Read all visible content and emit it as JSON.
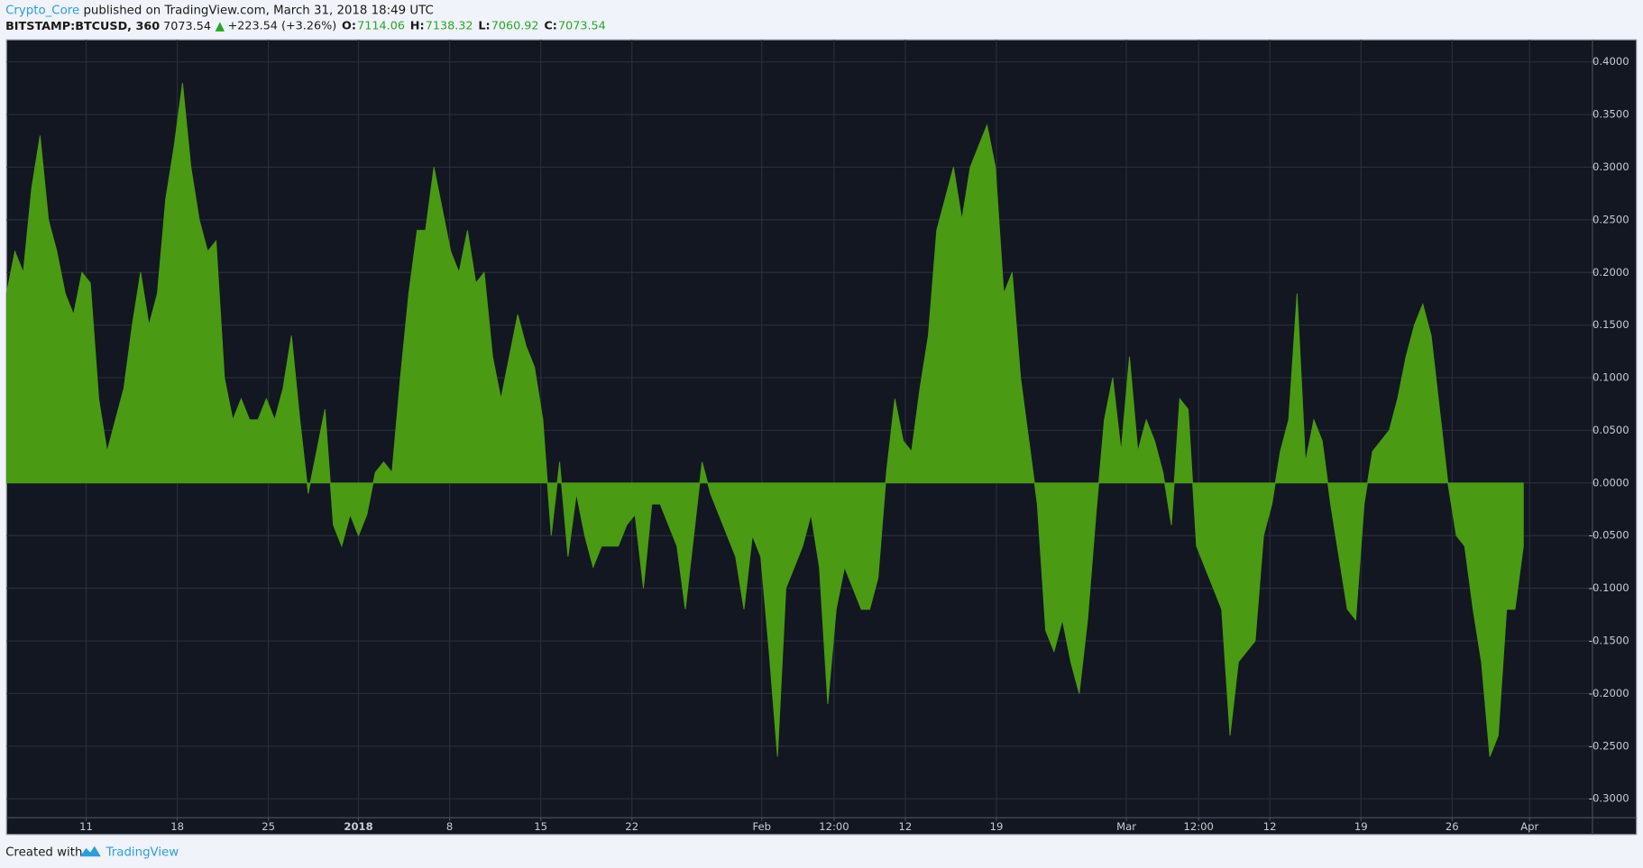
{
  "header": {
    "author": "Crypto_Core",
    "published": "published on TradingView.com, March 31, 2018 18:49 UTC",
    "symbol": "BITSTAMP:BTCUSD, 360",
    "last": "7073.54",
    "change": "+223.54 (+3.26%)",
    "ohlc": [
      {
        "label": "O:",
        "value": "7114.06"
      },
      {
        "label": "H:",
        "value": "7138.32"
      },
      {
        "label": "L:",
        "value": "7060.92"
      },
      {
        "label": "C:",
        "value": "7073.54"
      }
    ]
  },
  "footer": {
    "created": "Created with",
    "brand": "TradingView"
  },
  "chart_data": {
    "type": "area",
    "color": "#4a9a14",
    "grid": true,
    "values": [
      0.18,
      0.22,
      0.2,
      0.28,
      0.33,
      0.25,
      0.22,
      0.18,
      0.16,
      0.2,
      0.19,
      0.08,
      0.03,
      0.06,
      0.09,
      0.15,
      0.2,
      0.15,
      0.18,
      0.27,
      0.32,
      0.38,
      0.3,
      0.25,
      0.22,
      0.23,
      0.1,
      0.06,
      0.08,
      0.06,
      0.06,
      0.08,
      0.06,
      0.09,
      0.14,
      0.06,
      -0.01,
      0.03,
      0.07,
      -0.04,
      -0.06,
      -0.03,
      -0.05,
      -0.03,
      0.01,
      0.02,
      0.01,
      0.1,
      0.18,
      0.24,
      0.24,
      0.3,
      0.26,
      0.22,
      0.2,
      0.24,
      0.19,
      0.2,
      0.12,
      0.08,
      0.12,
      0.16,
      0.13,
      0.11,
      0.06,
      -0.05,
      0.02,
      -0.07,
      -0.01,
      -0.05,
      -0.08,
      -0.06,
      -0.06,
      -0.06,
      -0.04,
      -0.03,
      -0.1,
      -0.02,
      -0.02,
      -0.04,
      -0.06,
      -0.12,
      -0.05,
      0.02,
      -0.01,
      -0.03,
      -0.05,
      -0.07,
      -0.12,
      -0.05,
      -0.07,
      -0.16,
      -0.26,
      -0.1,
      -0.08,
      -0.06,
      -0.03,
      -0.08,
      -0.21,
      -0.12,
      -0.08,
      -0.1,
      -0.12,
      -0.12,
      -0.09,
      0.01,
      0.08,
      0.04,
      0.03,
      0.09,
      0.14,
      0.24,
      0.27,
      0.3,
      0.25,
      0.3,
      0.32,
      0.34,
      0.3,
      0.18,
      0.2,
      0.1,
      0.04,
      -0.02,
      -0.14,
      -0.16,
      -0.13,
      -0.17,
      -0.2,
      -0.13,
      -0.03,
      0.06,
      0.1,
      0.03,
      0.12,
      0.03,
      0.06,
      0.04,
      0.01,
      -0.04,
      0.08,
      0.07,
      -0.06,
      -0.08,
      -0.1,
      -0.12,
      -0.24,
      -0.17,
      -0.16,
      -0.15,
      -0.05,
      -0.02,
      0.03,
      0.06,
      0.18,
      0.02,
      0.06,
      0.04,
      -0.02,
      -0.07,
      -0.12,
      -0.13,
      -0.02,
      0.03,
      0.04,
      0.05,
      0.08,
      0.12,
      0.15,
      0.17,
      0.14,
      0.07,
      0.0,
      -0.05,
      -0.06,
      -0.12,
      -0.17,
      -0.26,
      -0.24,
      -0.12,
      -0.12,
      -0.06
    ],
    "xlim": [
      0,
      189.25
    ],
    "xticks": [
      {
        "value": 9.5,
        "label": "11"
      },
      {
        "value": 20.375,
        "label": "18"
      },
      {
        "value": 31.25,
        "label": "25"
      },
      {
        "value": 42,
        "label": "2018"
      },
      {
        "value": 52.875,
        "label": "8"
      },
      {
        "value": 63.75,
        "label": "15"
      },
      {
        "value": 74.625,
        "label": "22"
      },
      {
        "value": 90.125,
        "label": "Feb"
      },
      {
        "value": 98.75,
        "label": "12:00"
      },
      {
        "value": 107.25,
        "label": "12"
      },
      {
        "value": 118.125,
        "label": "19"
      },
      {
        "value": 133.625,
        "label": "Mar"
      },
      {
        "value": 142.25,
        "label": "12:00"
      },
      {
        "value": 150.75,
        "label": "12"
      },
      {
        "value": 161.625,
        "label": "19"
      },
      {
        "value": 172.5,
        "label": "26"
      },
      {
        "value": 181.75,
        "label": "Apr"
      }
    ],
    "ylim": [
      -0.318,
      0.421
    ],
    "yticks": [
      {
        "value": -0.3,
        "label": "-0.3000"
      },
      {
        "value": -0.25,
        "label": "-0.2500"
      },
      {
        "value": -0.2,
        "label": "-0.2000"
      },
      {
        "value": -0.15,
        "label": "-0.1500"
      },
      {
        "value": -0.1,
        "label": "-0.1000"
      },
      {
        "value": -0.05,
        "label": "-0.0500"
      },
      {
        "value": 0,
        "label": "0.0000"
      },
      {
        "value": 0.05,
        "label": "0.0500"
      },
      {
        "value": 0.1,
        "label": "0.1000"
      },
      {
        "value": 0.15,
        "label": "0.1500"
      },
      {
        "value": 0.2,
        "label": "0.2000"
      },
      {
        "value": 0.25,
        "label": "0.2500"
      },
      {
        "value": 0.3,
        "label": "0.3000"
      },
      {
        "value": 0.35,
        "label": "0.3500"
      },
      {
        "value": 0.4,
        "label": "0.4000"
      }
    ]
  }
}
